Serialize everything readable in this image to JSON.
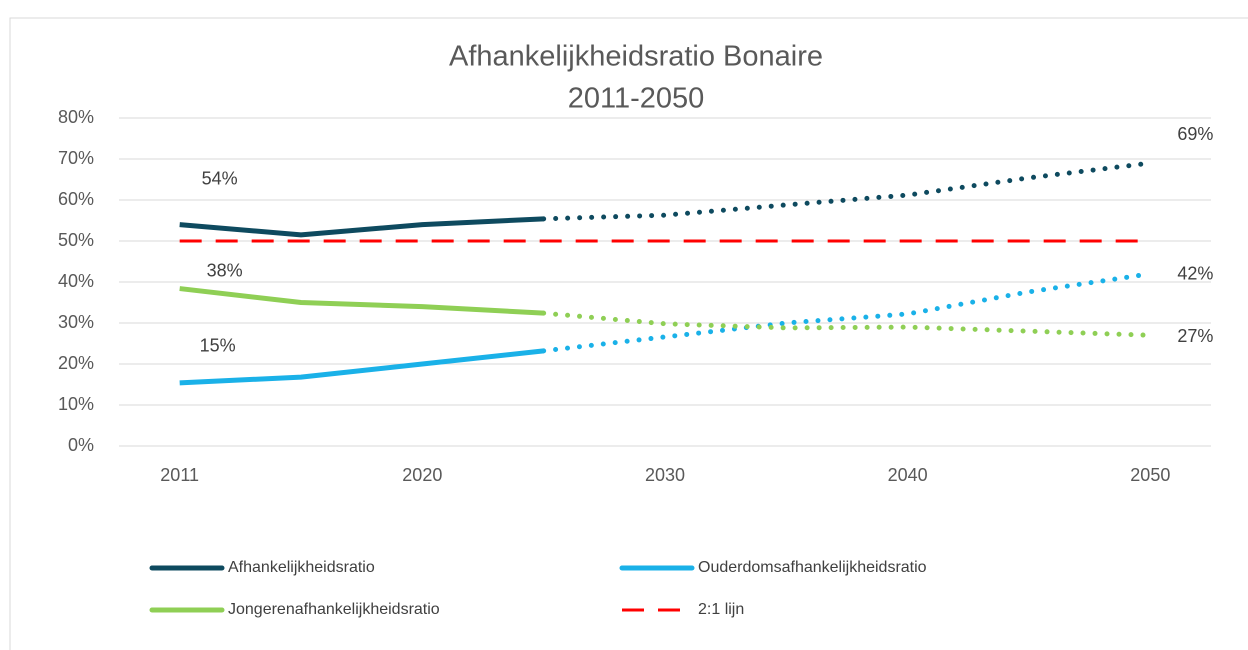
{
  "chart_data": {
    "type": "line",
    "title": [
      "Afhankelijkheidsratio Bonaire",
      "2011-2050"
    ],
    "categories": [
      "2011",
      null,
      "2020",
      null,
      "2030",
      null,
      "2040",
      null,
      "2050"
    ],
    "projection_from": 3,
    "ylim": [
      0,
      80
    ],
    "yticks": [
      {
        "value": 0,
        "label": "0%"
      },
      {
        "value": 10,
        "label": "10%"
      },
      {
        "value": 20,
        "label": "20%"
      },
      {
        "value": 30,
        "label": "30%"
      },
      {
        "value": 40,
        "label": "40%"
      },
      {
        "value": 50,
        "label": "50%"
      },
      {
        "value": 60,
        "label": "60%"
      },
      {
        "value": 70,
        "label": "70%"
      },
      {
        "value": 80,
        "label": "80%"
      }
    ],
    "grid": true,
    "legend": "bottom",
    "series": [
      {
        "name": "Afhankelijkheidsratio",
        "color": "#0e4a5f",
        "values": [
          54,
          51.5,
          54,
          55.4,
          56.3,
          58.8,
          61.2,
          65.4,
          69
        ],
        "value_labels": [
          "54%",
          null,
          null,
          null,
          null,
          null,
          null,
          null,
          "69%"
        ]
      },
      {
        "name": "Ouderdomsafhankelijkheidsratio",
        "color": "#1ab1e8",
        "values": [
          15.4,
          16.8,
          20,
          23.2,
          26.6,
          30,
          32.2,
          37.6,
          42
        ],
        "value_labels": [
          "15%",
          null,
          null,
          null,
          null,
          null,
          null,
          null,
          "42%"
        ]
      },
      {
        "name": "Jongerenafhankelijkheidsratio",
        "color": "#8fcf55",
        "values": [
          38.4,
          35,
          34,
          32.4,
          29.8,
          28.8,
          29,
          28,
          27
        ],
        "value_labels": [
          "38%",
          null,
          null,
          null,
          null,
          null,
          null,
          null,
          "27%"
        ]
      },
      {
        "name": "2:1 lijn",
        "color": "#ff0000",
        "dash": "dashed",
        "values": [
          50,
          50,
          50,
          50,
          50,
          50,
          50,
          50,
          50
        ]
      }
    ]
  }
}
